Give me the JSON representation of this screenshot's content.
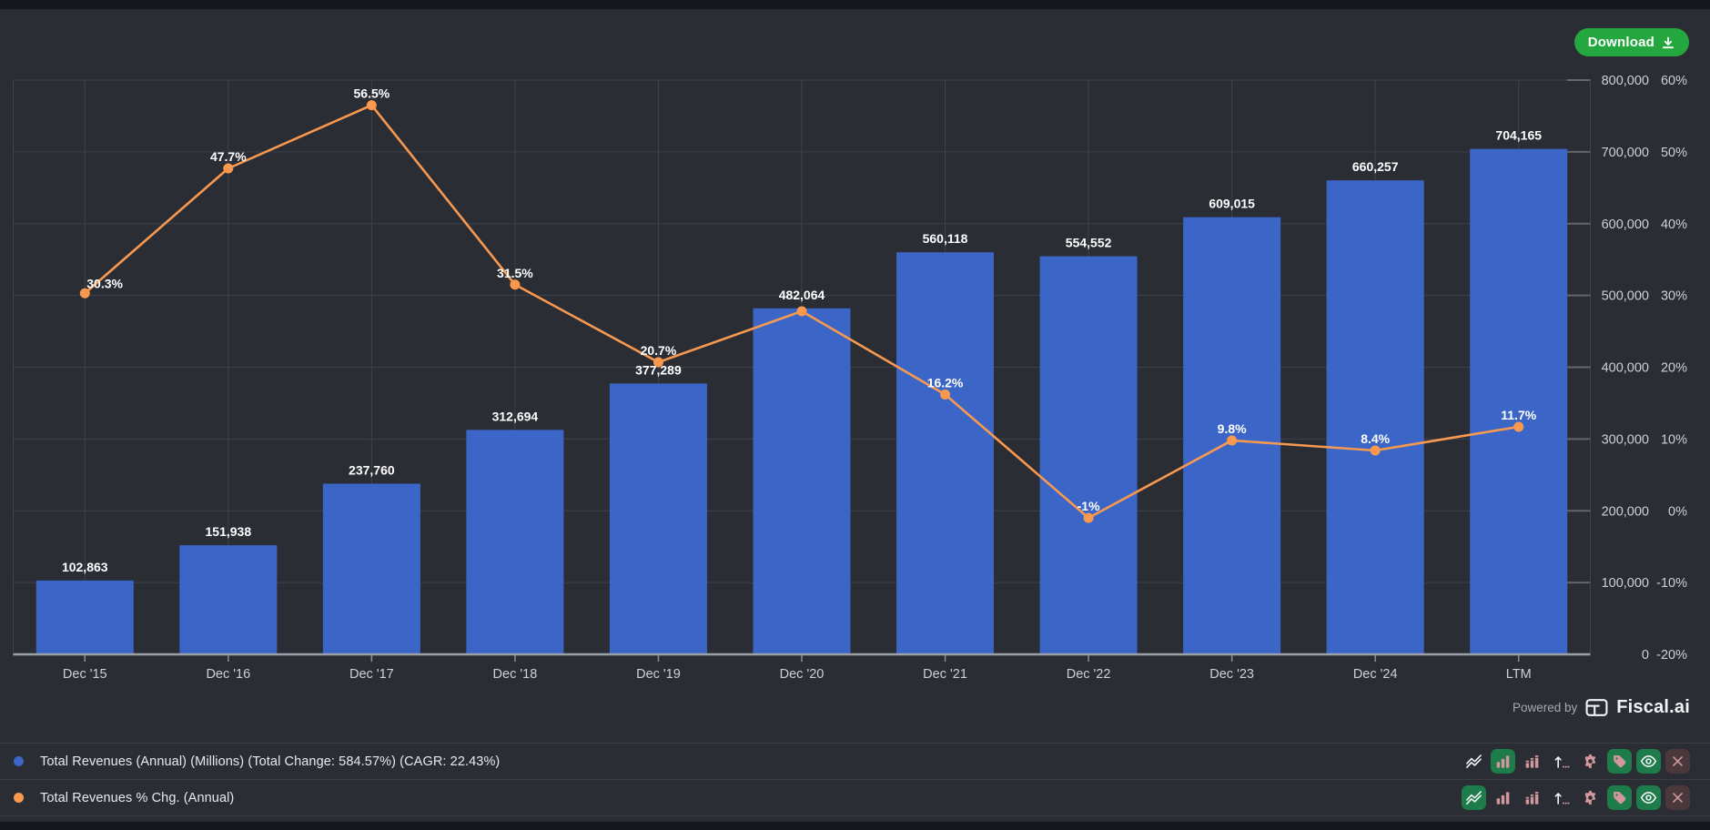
{
  "download_button": {
    "label": "Download"
  },
  "powered_by": {
    "prefix": "Powered by",
    "brand": "Fiscal.ai"
  },
  "colors": {
    "background": "#2b2d35",
    "edge_strip": "#17181d",
    "grid": "#3f424b",
    "axis_line": "#9b9fa6",
    "tick": "#63666d",
    "axis_text": "#cdd0d5",
    "bar": "#3b66c8",
    "line": "#f8994f",
    "value_label": "#ffffff",
    "button_green": "#23a73e",
    "icon_active_green": "#1e7b4a",
    "remove_bg": "#4a383c",
    "remove_icon": "#d2979d",
    "divider": "#3b3d45",
    "legend_text": "#e9eaec"
  },
  "chart_data": {
    "type": "bar",
    "subtype": "bar+line combo, dual axis",
    "categories": [
      "Dec '15",
      "Dec '16",
      "Dec '17",
      "Dec '18",
      "Dec '19",
      "Dec '20",
      "Dec '21",
      "Dec '22",
      "Dec '23",
      "Dec '24",
      "LTM"
    ],
    "series": [
      {
        "name": "Total Revenues (Annual) (Millions)",
        "type": "bar",
        "axis": "left",
        "color": "#3b66c8",
        "values": [
          102863,
          151938,
          237760,
          312694,
          377289,
          482064,
          560118,
          554552,
          609015,
          660257,
          704165
        ],
        "labels": [
          "102,863",
          "151,938",
          "237,760",
          "312,694",
          "377,289",
          "482,064",
          "560,118",
          "554,552",
          "609,015",
          "660,257",
          "704,165"
        ]
      },
      {
        "name": "Total Revenues % Chg. (Annual)",
        "type": "line",
        "axis": "right",
        "color": "#f8994f",
        "values": [
          30.3,
          47.7,
          56.5,
          31.5,
          20.7,
          27.8,
          16.2,
          -1,
          9.8,
          8.4,
          11.7
        ],
        "labels": [
          "30.3%",
          "47.7%",
          "56.5%",
          "31.5%",
          "20.7%",
          null,
          "16.2%",
          "-1%",
          "9.8%",
          "8.4%",
          "11.7%"
        ]
      }
    ],
    "left_axis": {
      "min": 0,
      "max": 800000,
      "ticks": [
        "800,000",
        "700,000",
        "600,000",
        "500,000",
        "400,000",
        "300,000",
        "200,000",
        "100,000",
        "0"
      ]
    },
    "right_axis": {
      "min": -20,
      "max": 60,
      "ticks": [
        "60%",
        "50%",
        "40%",
        "30%",
        "20%",
        "10%",
        "0%",
        "-10%",
        "-20%"
      ]
    },
    "grid": true,
    "legend_position": "bottom",
    "title": ""
  },
  "legend": {
    "rows": [
      {
        "label": "Total Revenues (Annual) (Millions) (Total Change: 584.57%) (CAGR: 22.43%)",
        "color": "#3b66c8",
        "icons": [
          {
            "name": "line-chart",
            "active": false
          },
          {
            "name": "bar-chart",
            "active": true
          },
          {
            "name": "segmented-bar-chart",
            "active": false
          },
          {
            "name": "sort-order",
            "active": false
          },
          {
            "name": "settings",
            "active": false
          },
          {
            "name": "tag",
            "active": true
          },
          {
            "name": "visibility",
            "active": true
          },
          {
            "name": "remove",
            "active": false,
            "variant": "danger"
          }
        ]
      },
      {
        "label": "Total Revenues % Chg. (Annual)",
        "color": "#f8994f",
        "icons": [
          {
            "name": "line-chart",
            "active": true
          },
          {
            "name": "bar-chart",
            "active": false
          },
          {
            "name": "segmented-bar-chart",
            "active": false
          },
          {
            "name": "sort-order",
            "active": false
          },
          {
            "name": "settings",
            "active": false
          },
          {
            "name": "tag",
            "active": true
          },
          {
            "name": "visibility",
            "active": true
          },
          {
            "name": "remove",
            "active": false,
            "variant": "danger"
          }
        ]
      }
    ]
  }
}
